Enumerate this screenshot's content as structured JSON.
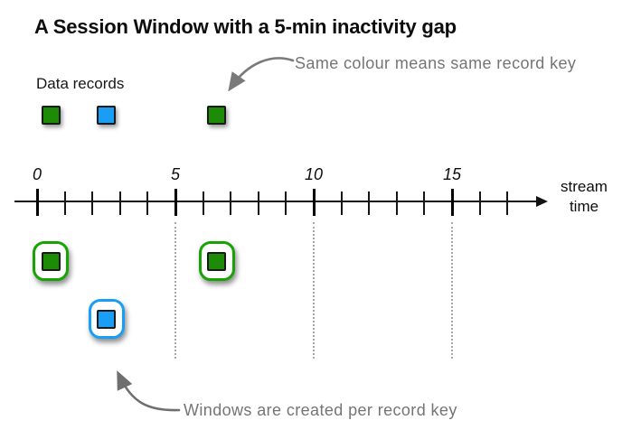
{
  "title": "A Session Window with a 5-min inactivity gap",
  "legend_label": "Data records",
  "annotations": {
    "top": "Same colour means same record key",
    "bottom": "Windows are created per record key"
  },
  "axis": {
    "label": [
      "stream",
      "time"
    ],
    "min": 0,
    "max": 17,
    "major_step": 5,
    "major_labels": [
      "0",
      "5",
      "10",
      "15"
    ],
    "dotted_lines_at": [
      5,
      10,
      15
    ]
  },
  "records": [
    {
      "key": "green",
      "time": 0.5
    },
    {
      "key": "blue",
      "time": 2.5
    },
    {
      "key": "green",
      "time": 6.5
    }
  ],
  "session_windows": [
    {
      "key": "green",
      "time": 0.5,
      "row": 0
    },
    {
      "key": "green",
      "time": 6.5,
      "row": 0
    },
    {
      "key": "blue",
      "time": 2.5,
      "row": 1
    }
  ],
  "colors": {
    "green": "#1d8b06",
    "blue": "#1a9ef5",
    "green_window_border": "#17a303",
    "blue_window_border": "#1a9ef5",
    "square_border": "#1a1a1a",
    "annotation_text": "#757575",
    "arrow": "#7a7a7a",
    "axis": "#111111",
    "dotted_line": "#a8a8a8"
  }
}
